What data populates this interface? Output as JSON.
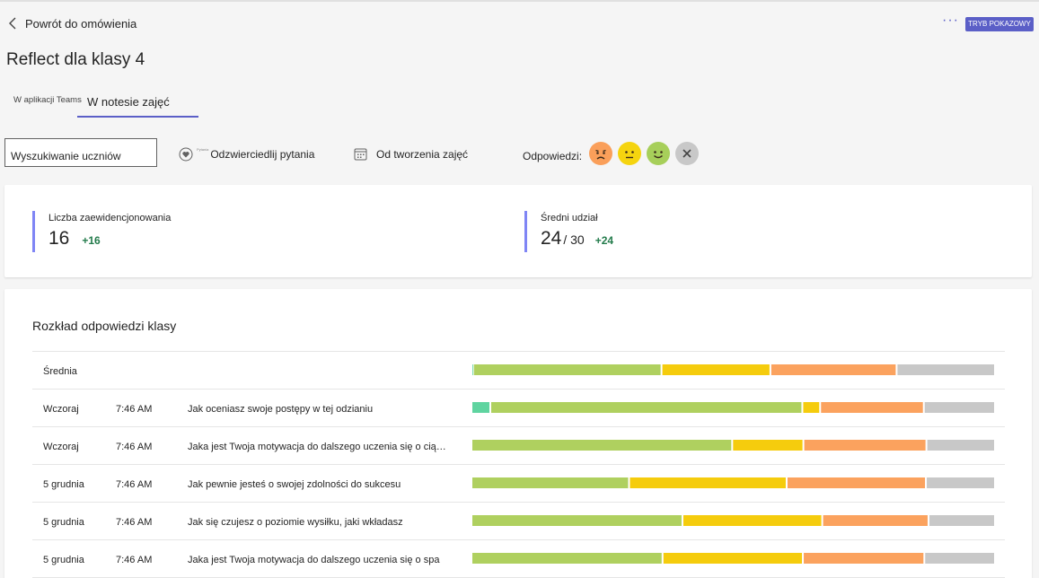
{
  "header": {
    "back_label": "Powrót do omówienia",
    "more_label": "···",
    "demo_badge": "TRYB POKAZOWY",
    "title": "Reflect dla klasy 4"
  },
  "tabs": [
    {
      "label": "W aplikacji Teams",
      "active": false
    },
    {
      "label": "W notesie zajęć",
      "active": true
    }
  ],
  "filters": {
    "search_value": "Wyszukiwanie uczniów",
    "questions_pre": "Pytania",
    "questions_label": "Odzwierciedlij pytania",
    "date_label": "Od tworzenia zajęć",
    "responses_label": "Odpowiedzi:",
    "emojis": [
      {
        "icon": "sad-face-icon",
        "color": "#fa9f5a"
      },
      {
        "icon": "neutral-face-icon",
        "color": "#f5d40f"
      },
      {
        "icon": "happy-face-icon",
        "color": "#a7cf5a"
      },
      {
        "icon": "clear-icon",
        "color": "#c8c8c8"
      }
    ]
  },
  "stats": [
    {
      "label": "Liczba zaewidencjonowania",
      "value": "16",
      "sub": "",
      "delta": "+16"
    },
    {
      "label": "Średni udział",
      "value": "24",
      "sub": "/ 30",
      "delta": "+24"
    }
  ],
  "distribution": {
    "title": "Rozkład odpowiedzi klasy",
    "colors": {
      "very_happy": "#5fd4a0",
      "happy": "#afd05f",
      "neutral": "#f5cc0d",
      "sad": "#fba25e",
      "none": "#c8c8c8"
    },
    "rows": [
      {
        "date": "Średnia",
        "time": "",
        "question": "",
        "shares": [
          0.3,
          36,
          20.8,
          24.1,
          18.8
        ]
      },
      {
        "date": "Wczoraj",
        "time": "7:46 AM",
        "question": "Jak oceniasz swoje postępy w tej odzianiu",
        "shares": [
          3.6,
          59.6,
          3.4,
          19.8,
          13.6
        ]
      },
      {
        "date": "Wczoraj",
        "time": "7:46 AM",
        "question": "Jaka jest Twoja motywacja do dalszego uczenia się o ciągłości",
        "shares": [
          0,
          49.8,
          13.6,
          23.5,
          13.1
        ]
      },
      {
        "date": "5 grudnia",
        "time": "7:46 AM",
        "question": "Jak pewnie jesteś o swojej zdolności do sukcesu",
        "shares": [
          0,
          30.1,
          30.1,
          26.6,
          13.2
        ]
      },
      {
        "date": "5 grudnia",
        "time": "7:46 AM",
        "question": "Jak się czujesz o poziomie wysiłku, jaki wkładasz",
        "shares": [
          0,
          40.3,
          26.7,
          20.3,
          12.7
        ]
      },
      {
        "date": "5 grudnia",
        "time": "7:46 AM",
        "question": "Jaka jest Twoja motywacja do dalszego uczenia się o spa",
        "shares": [
          0,
          36.5,
          26.8,
          23.2,
          13.5
        ]
      }
    ]
  }
}
